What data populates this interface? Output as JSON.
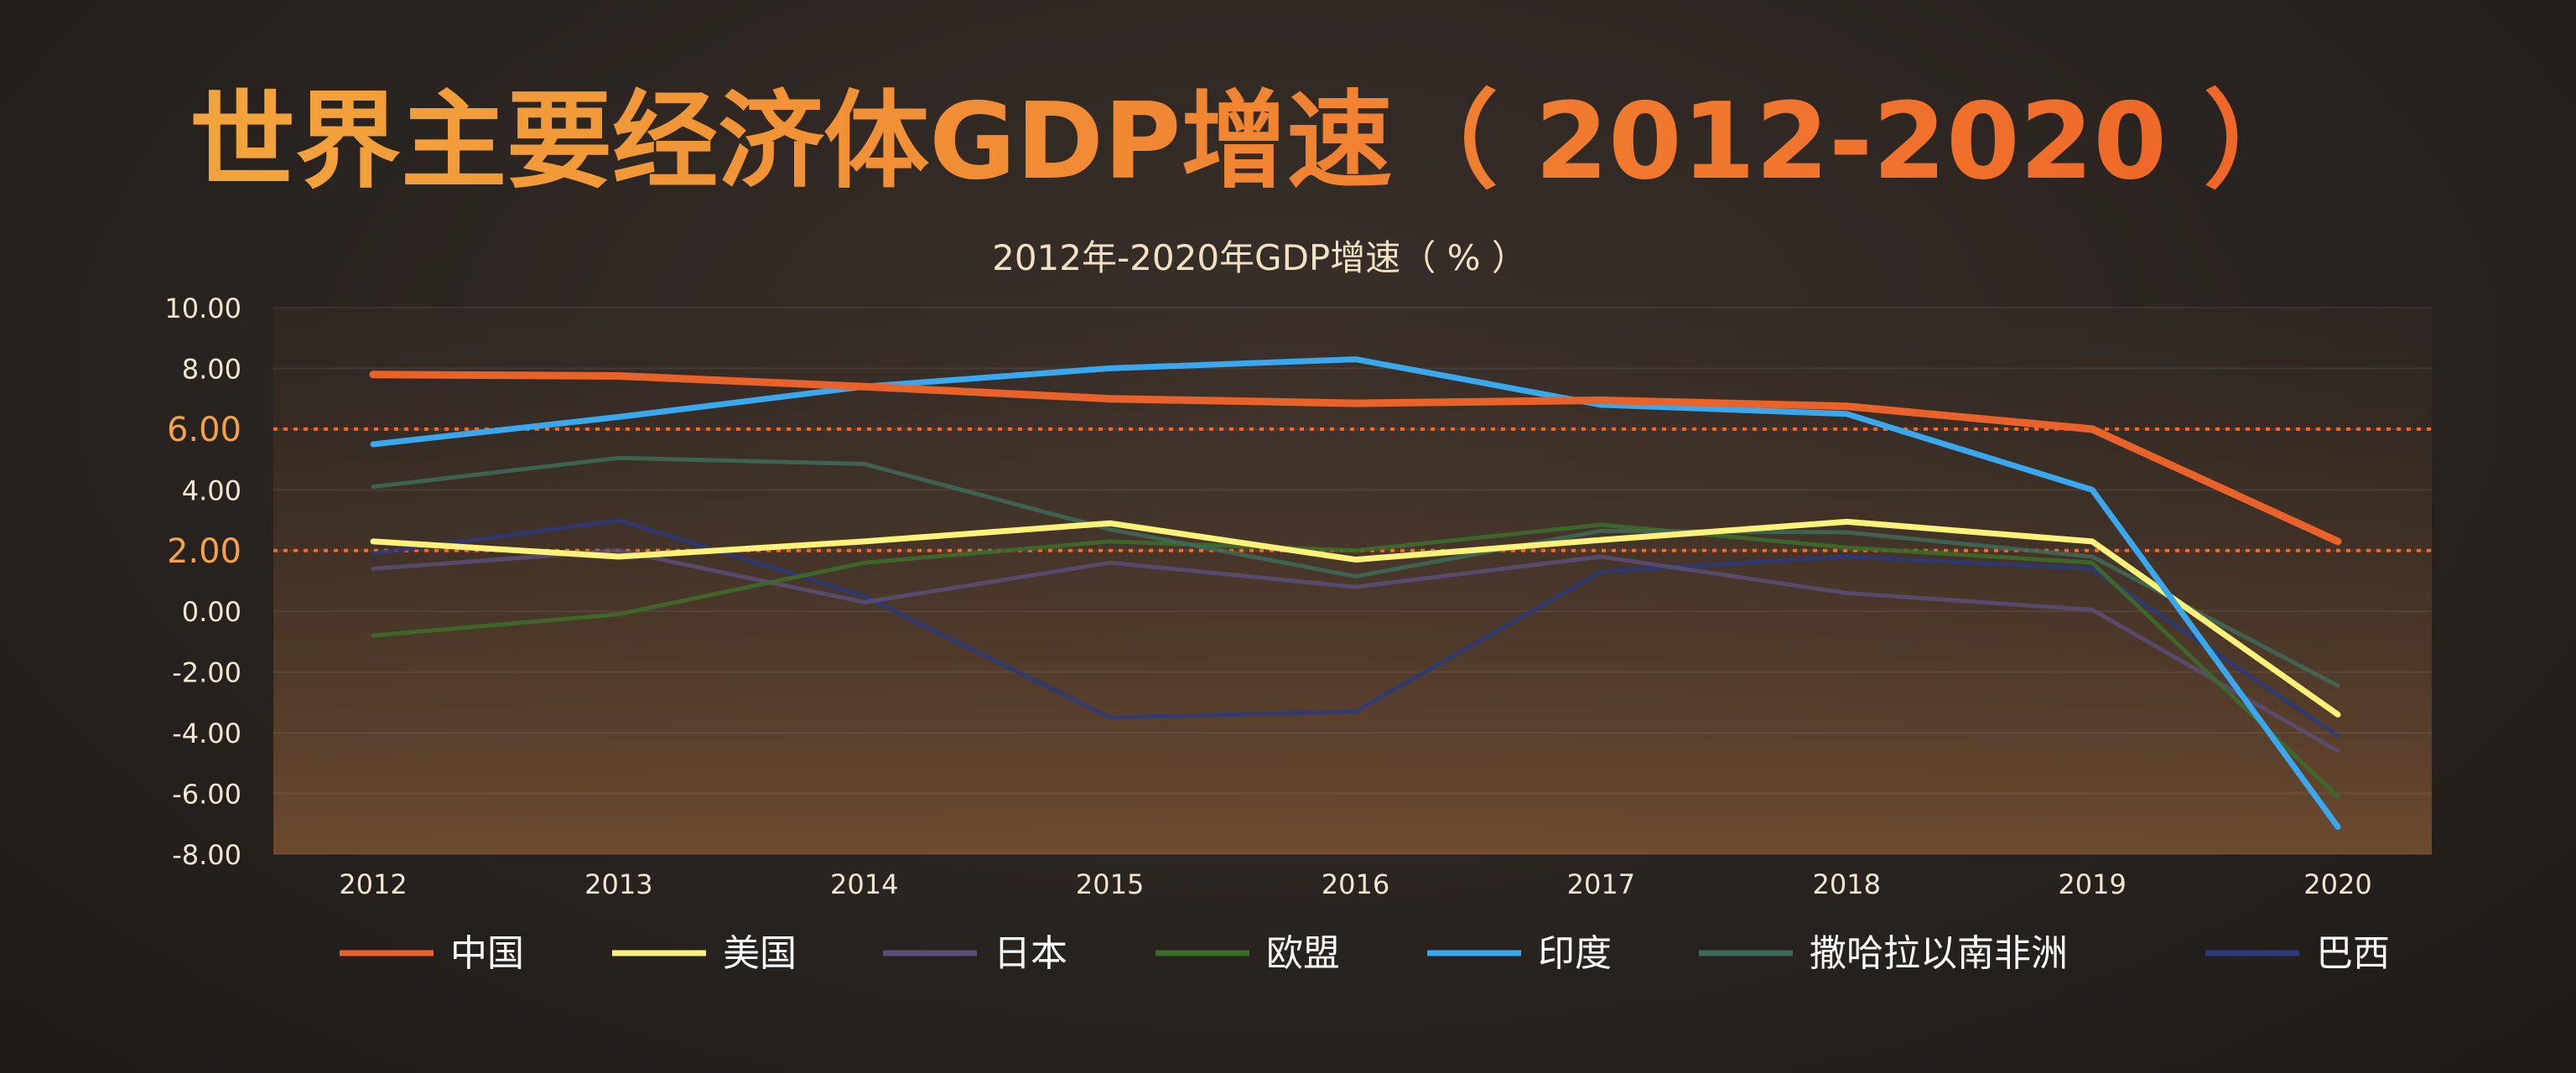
{
  "chart_data": {
    "type": "line",
    "title": "世界主要经济体GDP增速（ 2012-2020 ）",
    "subtitle": "2012年-2020年GDP增速（ % ）",
    "xlabel": "",
    "ylabel": "",
    "categories": [
      "2012",
      "2013",
      "2014",
      "2015",
      "2016",
      "2017",
      "2018",
      "2019",
      "2020"
    ],
    "ylim": [
      -8,
      10
    ],
    "yticks": [
      "10.00",
      "8.00",
      "6.00",
      "4.00",
      "2.00",
      "0.00",
      "-2.00",
      "-4.00",
      "-6.00",
      "-8.00"
    ],
    "reference_lines": [
      6,
      2
    ],
    "highlight_ticks": [
      "6.00",
      "2.00"
    ],
    "legend_position": "bottom",
    "grid": true,
    "series": [
      {
        "name": "中国",
        "color": "#e8622a",
        "values": [
          7.8,
          7.75,
          7.4,
          7.0,
          6.85,
          6.95,
          6.75,
          6.0,
          2.3
        ]
      },
      {
        "name": "美国",
        "color": "#fff27a",
        "values": [
          2.3,
          1.8,
          2.3,
          2.9,
          1.7,
          2.35,
          2.95,
          2.3,
          -3.4
        ]
      },
      {
        "name": "日本",
        "color": "#5b4d78",
        "values": [
          1.4,
          2.0,
          0.3,
          1.6,
          0.8,
          1.8,
          0.6,
          0.05,
          -4.6
        ]
      },
      {
        "name": "欧盟",
        "color": "#3d6b2a",
        "values": [
          -0.8,
          -0.1,
          1.6,
          2.3,
          2.0,
          2.85,
          2.1,
          1.6,
          -6.1
        ]
      },
      {
        "name": "印度",
        "color": "#3aa8ee",
        "values": [
          5.5,
          6.4,
          7.4,
          8.0,
          8.3,
          6.8,
          6.5,
          4.0,
          -7.1
        ]
      },
      {
        "name": "撒哈拉以南非洲",
        "color": "#3e6b58",
        "values": [
          4.1,
          5.05,
          4.85,
          2.7,
          1.15,
          2.65,
          2.6,
          1.8,
          -2.45
        ]
      },
      {
        "name": "巴西",
        "color": "#2c3a7a",
        "values": [
          1.9,
          3.0,
          0.5,
          -3.5,
          -3.3,
          1.3,
          1.8,
          1.4,
          -4.1
        ]
      }
    ]
  }
}
